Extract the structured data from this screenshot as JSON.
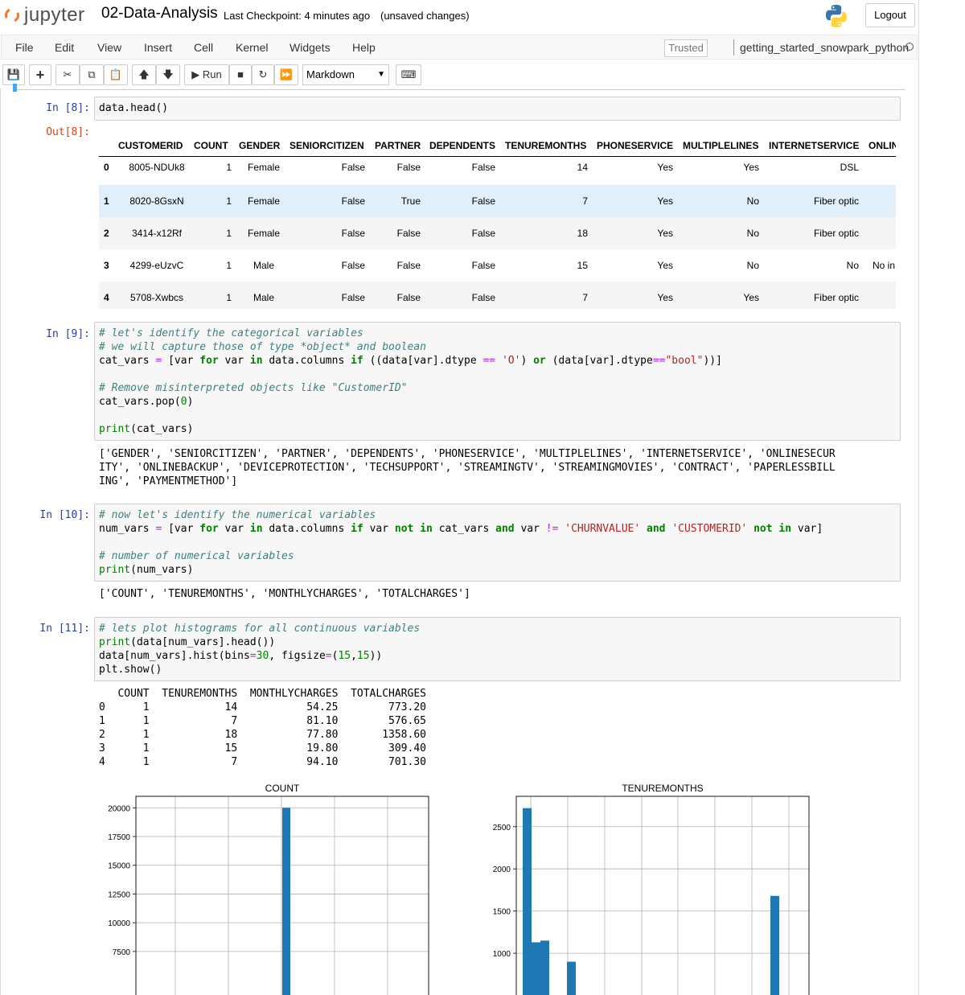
{
  "header": {
    "logo_text": "jupyter",
    "notebook_title": "02-Data-Analysis",
    "checkpoint": "Last Checkpoint: 4 minutes ago",
    "unsaved": "(unsaved changes)",
    "logout_label": "Logout"
  },
  "menubar": {
    "items": [
      "File",
      "Edit",
      "View",
      "Insert",
      "Cell",
      "Kernel",
      "Widgets",
      "Help"
    ],
    "trusted": "Trusted",
    "kernel_name": "getting_started_snowpark_python"
  },
  "toolbar": {
    "run_label": "Run",
    "cell_type": "Markdown"
  },
  "cells": {
    "c8": {
      "in_prompt": "In [8]:",
      "code": "data.head()",
      "out_prompt": "Out[8]:"
    },
    "c9": {
      "in_prompt": "In [9]:",
      "lines": [
        "# let's identify the categorical variables",
        "# we will capture those of type *object* and boolean",
        "cat_vars = [var for var in data.columns if ((data[var].dtype == 'O') or (data[var].dtype==\"bool\"))]",
        "",
        "# Remove misinterpreted objects like \"CustomerID\"",
        "cat_vars.pop(0)",
        "",
        "print(cat_vars)"
      ],
      "output": [
        "['GENDER', 'SENIORCITIZEN', 'PARTNER', 'DEPENDENTS', 'PHONESERVICE', 'MULTIPLELINES', 'INTERNETSERVICE', 'ONLINESECUR",
        "ITY', 'ONLINEBACKUP', 'DEVICEPROTECTION', 'TECHSUPPORT', 'STREAMINGTV', 'STREAMINGMOVIES', 'CONTRACT', 'PAPERLESSBILL",
        "ING', 'PAYMENTMETHOD']"
      ]
    },
    "c10": {
      "in_prompt": "In [10]:",
      "lines": [
        "# now let's identify the numerical variables",
        "num_vars = [var for var in data.columns if var not in cat_vars and var != 'CHURNVALUE' and 'CUSTOMERID' not in var]",
        "",
        "# number of numerical variables",
        "print(num_vars)"
      ],
      "output": [
        "['COUNT', 'TENUREMONTHS', 'MONTHLYCHARGES', 'TOTALCHARGES']"
      ]
    },
    "c11": {
      "in_prompt": "In [11]:",
      "lines": [
        "# lets plot histograms for all continuous variables",
        "print(data[num_vars].head())",
        "data[num_vars].hist(bins=30, figsize=(15,15))",
        "plt.show()"
      ],
      "output": [
        "   COUNT  TENUREMONTHS  MONTHLYCHARGES  TOTALCHARGES",
        "0      1            14           54.25        773.20",
        "1      1             7           81.10        576.65",
        "2      1            18           77.80       1358.60",
        "3      1            15           19.80        309.40",
        "4      1             7           94.10        701.30"
      ]
    }
  },
  "dataframe": {
    "columns": [
      "CUSTOMERID",
      "COUNT",
      "GENDER",
      "SENIORCITIZEN",
      "PARTNER",
      "DEPENDENTS",
      "TENUREMONTHS",
      "PHONESERVICE",
      "MULTIPLELINES",
      "INTERNETSERVICE",
      "ONLIN"
    ],
    "rows": [
      [
        "0",
        "8005-NDUk8",
        "1",
        "Female",
        "False",
        "False",
        "False",
        "14",
        "Yes",
        "Yes",
        "DSL",
        ""
      ],
      [
        "1",
        "8020-8GsxN",
        "1",
        "Female",
        "False",
        "True",
        "False",
        "7",
        "Yes",
        "No",
        "Fiber optic",
        ""
      ],
      [
        "2",
        "3414-x12Rf",
        "1",
        "Female",
        "False",
        "False",
        "False",
        "18",
        "Yes",
        "No",
        "Fiber optic",
        ""
      ],
      [
        "3",
        "4299-eUzvC",
        "1",
        "Male",
        "False",
        "False",
        "False",
        "15",
        "Yes",
        "No",
        "No",
        "No in"
      ],
      [
        "4",
        "5708-Xwbcs",
        "1",
        "Male",
        "False",
        "False",
        "False",
        "7",
        "Yes",
        "Yes",
        "Fiber optic",
        ""
      ]
    ],
    "hover_row": 1,
    "colors": {
      "stripe": "#f5f5f5",
      "hover": "#e1effa"
    }
  },
  "chart_data": [
    {
      "type": "bar",
      "title": "COUNT",
      "yticks": [
        7500,
        10000,
        12500,
        15000,
        17500,
        20000
      ],
      "ylim": [
        0,
        21000
      ],
      "bars": [
        {
          "x": 1,
          "value": 20000
        }
      ],
      "grid": true,
      "color": "#1f77b4"
    },
    {
      "type": "bar",
      "title": "TENUREMONTHS",
      "yticks": [
        1000,
        1500,
        2000,
        2500
      ],
      "ylim": [
        0,
        2860
      ],
      "bars": [
        {
          "x": 1,
          "value": 2720
        },
        {
          "x": 2,
          "value": 1130
        },
        {
          "x": 3,
          "value": 1150
        },
        {
          "x": 6,
          "value": 900
        },
        {
          "x": 29,
          "value": 1680
        }
      ],
      "grid": true,
      "color": "#1f77b4"
    }
  ]
}
